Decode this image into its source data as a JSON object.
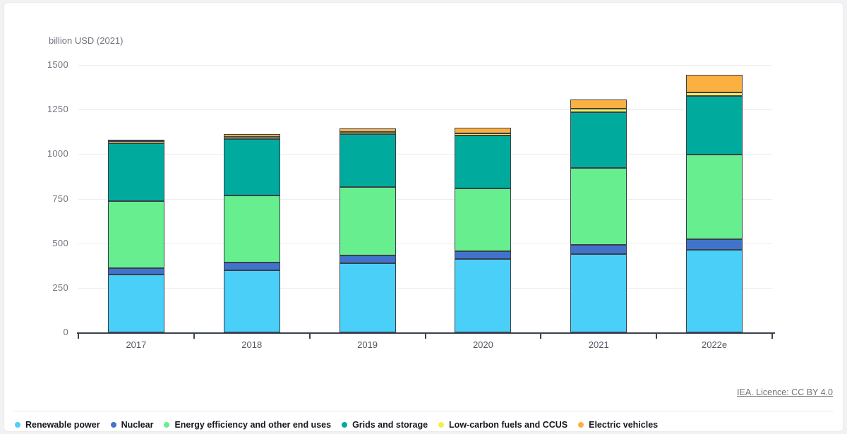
{
  "footer": {
    "source_text": "IEA. Licence: CC BY 4.0"
  },
  "chart_data": {
    "type": "bar",
    "stacked": true,
    "title": "",
    "xlabel": "",
    "ylabel": "billion USD (2021)",
    "ylim": [
      0,
      1500
    ],
    "y_ticks": [
      0,
      250,
      500,
      750,
      1000,
      1250,
      1500
    ],
    "grid": true,
    "legend_position": "bottom",
    "categories": [
      "2017",
      "2018",
      "2019",
      "2020",
      "2021",
      "2022e"
    ],
    "series": [
      {
        "name": "Renewable power",
        "color": "#4acff8",
        "values": [
          325,
          348,
          388,
          412,
          439,
          463
        ]
      },
      {
        "name": "Nuclear",
        "color": "#4273cb",
        "values": [
          36,
          44,
          43,
          43,
          52,
          59
        ]
      },
      {
        "name": "Energy efficiency and other end uses",
        "color": "#67ef8f",
        "values": [
          375,
          376,
          384,
          352,
          431,
          475
        ]
      },
      {
        "name": "Grids and storage",
        "color": "#00ab9e",
        "values": [
          325,
          316,
          297,
          297,
          313,
          329
        ]
      },
      {
        "name": "Low-carbon fuels and CCUS",
        "color": "#f6ee4e",
        "values": [
          11,
          11,
          12,
          12,
          18,
          20
        ]
      },
      {
        "name": "Electric vehicles",
        "color": "#fbb042",
        "values": [
          9,
          16,
          20,
          32,
          55,
          99
        ]
      }
    ],
    "totals": [
      1081,
      1111,
      1144,
      1148,
      1308,
      1445
    ]
  }
}
